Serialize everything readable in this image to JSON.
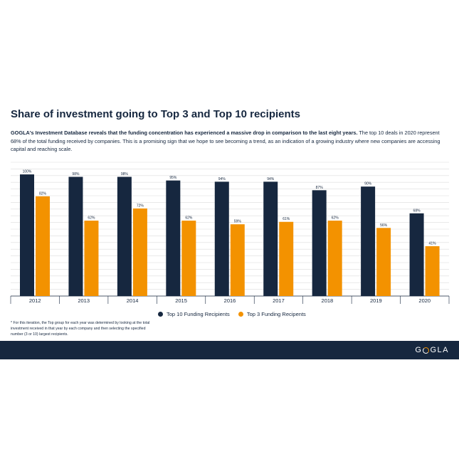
{
  "header": {
    "title": "Share of investment going to Top 3 and Top 10 recipients",
    "intro_bold": "GOGLA's Investment Database reveals that the funding concentration has experienced a massive drop in comparison to the last eight years.",
    "intro_text": " The top 10 deals in 2020 represent 68% of the total funding received by companies. This is a promising sign that we hope to see becoming a trend, as an indication of a growing industry where new companies are accessing capital and reaching scale."
  },
  "legend": {
    "top10": "Top 10 Funding Recipients",
    "top3": "Top 3 Funding Recipents"
  },
  "footnote": "* For this iteration, the Top group for each year was determined by looking at the total investment received in that year by each company and then selecting the specified number (3 or 10) largest recipients.",
  "footer": {
    "logo_left": "G",
    "logo_right": "GLA"
  },
  "colors": {
    "top10": "#16273f",
    "top3": "#f39200",
    "grid": "#dcdcdc"
  },
  "chart_data": {
    "type": "bar",
    "categories": [
      "2012",
      "2013",
      "2014",
      "2015",
      "2016",
      "2017",
      "2018",
      "2019",
      "2020"
    ],
    "series": [
      {
        "name": "Top 10 Funding Recipients",
        "values": [
          100,
          98,
          98,
          95,
          94,
          94,
          87,
          90,
          68
        ],
        "labels": [
          "100%",
          "98%",
          "98%",
          "95%",
          "94%",
          "94%",
          "87%",
          "90%",
          "68%"
        ]
      },
      {
        "name": "Top 3 Funding Recipents",
        "values": [
          82,
          62,
          72,
          62,
          59,
          61,
          62,
          56,
          41
        ],
        "labels": [
          "82%",
          "62%",
          "72%",
          "62%",
          "59%",
          "61%",
          "62%",
          "56%",
          "41%"
        ]
      }
    ],
    "ylim": [
      0,
      110
    ],
    "grid": true,
    "legend_position": "bottom"
  }
}
